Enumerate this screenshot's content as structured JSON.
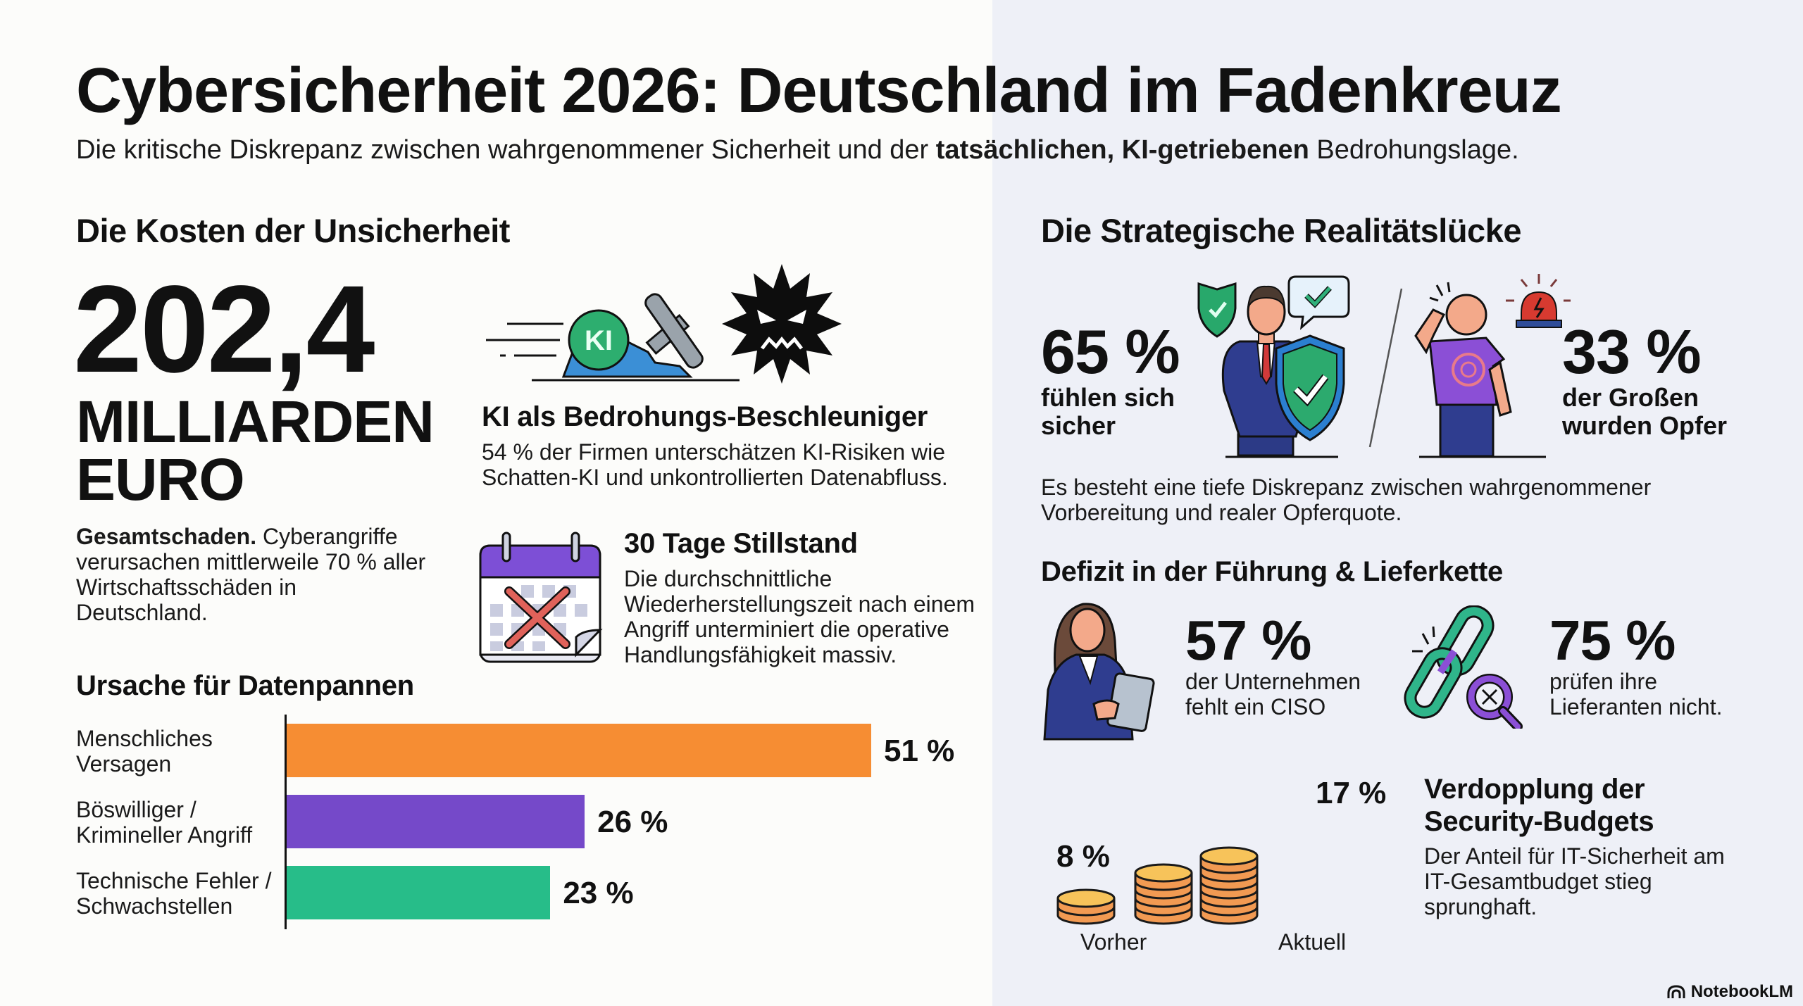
{
  "header": {
    "title": "Cybersicherheit 2026: Deutschland im Fadenkreuz",
    "subtitle_part1": "Die kritische Diskrepanz zwischen wahrgenommener Sicherheit und der ",
    "subtitle_bold": "tatsächlichen, KI-getriebenen",
    "subtitle_part2": " Bedrohungslage."
  },
  "costs": {
    "heading": "Die Kosten der Unsicherheit",
    "amount": "202,4",
    "unit_line1": "MILLIARDEN",
    "unit_line2": "EURO",
    "desc_bold": "Gesamtschaden.",
    "desc_rest": " Cyberangriffe verursachen mittlerweile 70 % aller Wirtschaftsschäden in Deutschland."
  },
  "ai_threat": {
    "icon": "ai-hammer-virus-illustration",
    "badge": "KI",
    "heading": "KI als Bedrohungs-Beschleuniger",
    "text": "54 % der Firmen unterschätzen KI-Risiken wie Schatten-KI und unkontrollierten Datenabfluss."
  },
  "downtime": {
    "icon": "calendar-crossed-icon",
    "heading": "30 Tage Stillstand",
    "text": "Die durchschnittliche Wiederherstellungszeit nach einem Angriff unterminiert die operative Handlungsfähigkeit massiv."
  },
  "chart_data": {
    "type": "bar",
    "orientation": "horizontal",
    "title": "Ursache für Datenpannen",
    "categories": [
      "Menschliches Versagen",
      "Böswilliger / Krimineller Angriff",
      "Technische Fehler / Schwachstellen"
    ],
    "category_lines": [
      [
        "Menschliches",
        "Versagen"
      ],
      [
        "Böswilliger /",
        "Krimineller Angriff"
      ],
      [
        "Technische Fehler /",
        "Schwachstellen"
      ]
    ],
    "values": [
      51,
      26,
      23
    ],
    "value_labels": [
      "51 %",
      "26 %",
      "23 %"
    ],
    "colors": [
      "#f68d33",
      "#7549c9",
      "#27bd89"
    ],
    "xlim": [
      0,
      51
    ],
    "grid": false,
    "xlabel": "",
    "ylabel": ""
  },
  "reality_gap": {
    "heading": "Die Strategische Realitätslücke",
    "left_stat": "65 %",
    "left_label_line1": "fühlen sich",
    "left_label_line2": "sicher",
    "right_stat": "33 %",
    "right_label_line1": "der Großen",
    "right_label_line2": "wurden Opfer",
    "text": "Es besteht eine tiefe Diskrepanz zwischen wahrgenommener Vorbereitung und realer Opferquote."
  },
  "deficit": {
    "heading": "Defizit in der Führung & Lieferkette",
    "ciso_stat": "57 %",
    "ciso_label_line1": "der Unternehmen",
    "ciso_label_line2": "fehlt ein CISO",
    "supplier_stat": "75 %",
    "supplier_label_line1": "prüfen ihre",
    "supplier_label_line2": "Lieferanten nicht."
  },
  "budget": {
    "before_pct": "8 %",
    "before_value": 8,
    "before_label": "Vorher",
    "after_pct": "17 %",
    "after_value": 17,
    "after_label": "Aktuell",
    "heading_line1": "Verdopplung der",
    "heading_line2": "Security-Budgets",
    "text": "Der Anteil für IT-Sicherheit am IT-Gesamtbudget stieg sprunghaft."
  },
  "brand": {
    "name": "NotebookLM"
  },
  "colors": {
    "orange": "#f68d33",
    "purple": "#7549c9",
    "green": "#27bd89",
    "navy": "#2c3a86",
    "red": "#d8504a",
    "right_panel_bg": "#eef0f7"
  }
}
